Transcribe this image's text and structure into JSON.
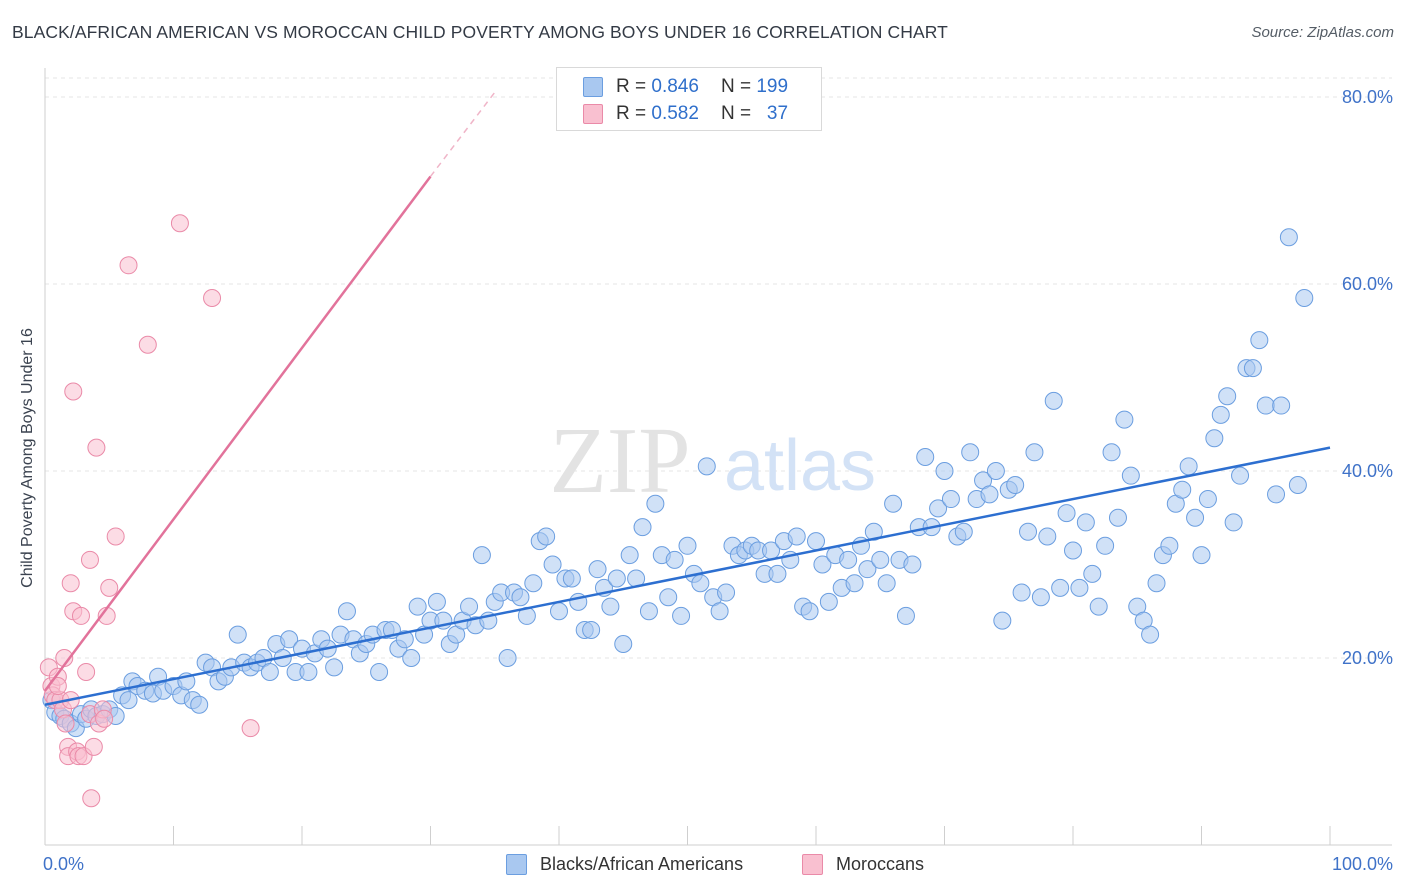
{
  "title": "BLACK/AFRICAN AMERICAN VS MOROCCAN CHILD POVERTY AMONG BOYS UNDER 16 CORRELATION CHART",
  "source": "Source: ZipAtlas.com",
  "watermark": {
    "zip": "ZIP",
    "atlas": "atlas"
  },
  "legend": {
    "r_label": "R =",
    "n_label": "N =",
    "series": [
      {
        "r": "0.846",
        "n": "199",
        "color": "#a9c8f0",
        "border": "#6b9ee0"
      },
      {
        "r": "0.582",
        "n": "37",
        "color": "#f9c0d0",
        "border": "#ea8aa8"
      }
    ]
  },
  "bottom_legend": [
    "Blacks/African Americans",
    "Moroccans"
  ],
  "chart_data": {
    "type": "scatter",
    "title": "BLACK/AFRICAN AMERICAN VS MOROCCAN CHILD POVERTY AMONG BOYS UNDER 16 CORRELATION CHART",
    "xlabel": "",
    "ylabel": "Child Poverty Among Boys Under 16",
    "xlim": [
      0,
      100
    ],
    "ylim": [
      0,
      80
    ],
    "x_tick_labels": [
      "0.0%",
      "100.0%"
    ],
    "y_tick_labels": [
      "20.0%",
      "40.0%",
      "60.0%",
      "80.0%"
    ],
    "y_ticks": [
      20,
      40,
      60,
      80
    ],
    "grid": true,
    "legend_position": "top-center",
    "series": [
      {
        "name": "Blacks/African Americans",
        "color": "#a9c8f0",
        "stroke": "#6b9ee0",
        "trend": {
          "x": [
            0,
            100
          ],
          "y": [
            15.0,
            42.5
          ],
          "color": "#2d6fd0"
        },
        "points": [
          [
            0.5,
            15.5
          ],
          [
            0.8,
            14.2
          ],
          [
            1.2,
            13.8
          ],
          [
            1.5,
            13.5
          ],
          [
            2.0,
            13.0
          ],
          [
            2.4,
            12.5
          ],
          [
            2.8,
            14.0
          ],
          [
            3.2,
            13.5
          ],
          [
            3.6,
            14.5
          ],
          [
            4.0,
            13.8
          ],
          [
            4.5,
            14.0
          ],
          [
            5.0,
            14.5
          ],
          [
            5.5,
            13.8
          ],
          [
            6.0,
            16.0
          ],
          [
            6.5,
            15.5
          ],
          [
            6.8,
            17.5
          ],
          [
            7.2,
            17.0
          ],
          [
            7.8,
            16.5
          ],
          [
            8.4,
            16.2
          ],
          [
            8.8,
            18.0
          ],
          [
            9.2,
            16.5
          ],
          [
            10.0,
            17.0
          ],
          [
            10.6,
            16.0
          ],
          [
            11.0,
            17.5
          ],
          [
            11.5,
            15.5
          ],
          [
            12.0,
            15.0
          ],
          [
            12.5,
            19.5
          ],
          [
            13.0,
            19.0
          ],
          [
            13.5,
            17.5
          ],
          [
            14.0,
            18.0
          ],
          [
            14.5,
            19.0
          ],
          [
            15.0,
            22.5
          ],
          [
            15.5,
            19.5
          ],
          [
            16.0,
            19.0
          ],
          [
            16.5,
            19.5
          ],
          [
            17.0,
            20.0
          ],
          [
            17.5,
            18.5
          ],
          [
            18.0,
            21.5
          ],
          [
            18.5,
            20.0
          ],
          [
            19.0,
            22.0
          ],
          [
            19.5,
            18.5
          ],
          [
            20.0,
            21.0
          ],
          [
            20.5,
            18.5
          ],
          [
            21.0,
            20.5
          ],
          [
            21.5,
            22.0
          ],
          [
            22.0,
            21.0
          ],
          [
            22.5,
            19.0
          ],
          [
            23.0,
            22.5
          ],
          [
            23.5,
            25.0
          ],
          [
            24.0,
            22.0
          ],
          [
            24.5,
            20.5
          ],
          [
            25.0,
            21.5
          ],
          [
            25.5,
            22.5
          ],
          [
            26.0,
            18.5
          ],
          [
            26.5,
            23.0
          ],
          [
            27.0,
            23.0
          ],
          [
            27.5,
            21.0
          ],
          [
            28.0,
            22.0
          ],
          [
            28.5,
            20.0
          ],
          [
            29.0,
            25.5
          ],
          [
            29.5,
            22.5
          ],
          [
            30.0,
            24.0
          ],
          [
            30.5,
            26.0
          ],
          [
            31.0,
            24.0
          ],
          [
            31.5,
            21.5
          ],
          [
            32.0,
            22.5
          ],
          [
            32.5,
            24.0
          ],
          [
            33.0,
            25.5
          ],
          [
            33.5,
            23.5
          ],
          [
            34.0,
            31.0
          ],
          [
            34.5,
            24.0
          ],
          [
            35.0,
            26.0
          ],
          [
            35.5,
            27.0
          ],
          [
            36.0,
            20.0
          ],
          [
            36.5,
            27.0
          ],
          [
            37.0,
            26.5
          ],
          [
            37.5,
            24.5
          ],
          [
            38.0,
            28.0
          ],
          [
            38.5,
            32.5
          ],
          [
            39.0,
            33.0
          ],
          [
            39.5,
            30.0
          ],
          [
            40.0,
            25.0
          ],
          [
            40.5,
            28.5
          ],
          [
            41.0,
            28.5
          ],
          [
            41.5,
            26.0
          ],
          [
            42.0,
            23.0
          ],
          [
            42.5,
            23.0
          ],
          [
            43.0,
            29.5
          ],
          [
            43.5,
            27.5
          ],
          [
            44.0,
            25.5
          ],
          [
            44.5,
            28.5
          ],
          [
            45.0,
            21.5
          ],
          [
            45.5,
            31.0
          ],
          [
            46.0,
            28.5
          ],
          [
            46.5,
            34.0
          ],
          [
            47.0,
            25.0
          ],
          [
            47.5,
            36.5
          ],
          [
            48.0,
            31.0
          ],
          [
            48.5,
            26.5
          ],
          [
            49.0,
            30.5
          ],
          [
            49.5,
            24.5
          ],
          [
            50.0,
            32.0
          ],
          [
            50.5,
            29.0
          ],
          [
            51.0,
            28.0
          ],
          [
            51.5,
            40.5
          ],
          [
            52.0,
            26.5
          ],
          [
            52.5,
            25.0
          ],
          [
            53.0,
            27.0
          ],
          [
            53.5,
            32.0
          ],
          [
            54.0,
            31.0
          ],
          [
            54.5,
            31.5
          ],
          [
            55.0,
            32.0
          ],
          [
            55.5,
            31.5
          ],
          [
            56.0,
            29.0
          ],
          [
            56.5,
            31.5
          ],
          [
            57.0,
            29.0
          ],
          [
            57.5,
            32.5
          ],
          [
            58.0,
            30.5
          ],
          [
            58.5,
            33.0
          ],
          [
            59.0,
            25.5
          ],
          [
            59.5,
            25.0
          ],
          [
            60.0,
            32.5
          ],
          [
            60.5,
            30.0
          ],
          [
            61.0,
            26.0
          ],
          [
            61.5,
            31.0
          ],
          [
            62.0,
            27.5
          ],
          [
            62.5,
            30.5
          ],
          [
            63.0,
            28.0
          ],
          [
            63.5,
            32.0
          ],
          [
            64.0,
            29.5
          ],
          [
            64.5,
            33.5
          ],
          [
            65.0,
            30.5
          ],
          [
            65.5,
            28.0
          ],
          [
            66.0,
            36.5
          ],
          [
            66.5,
            30.5
          ],
          [
            67.0,
            24.5
          ],
          [
            67.5,
            30.0
          ],
          [
            68.0,
            34.0
          ],
          [
            68.5,
            41.5
          ],
          [
            69.0,
            34.0
          ],
          [
            69.5,
            36.0
          ],
          [
            70.0,
            40.0
          ],
          [
            70.5,
            37.0
          ],
          [
            71.0,
            33.0
          ],
          [
            71.5,
            33.5
          ],
          [
            72.0,
            42.0
          ],
          [
            72.5,
            37.0
          ],
          [
            73.0,
            39.0
          ],
          [
            73.5,
            37.5
          ],
          [
            74.0,
            40.0
          ],
          [
            74.5,
            24.0
          ],
          [
            75.0,
            38.0
          ],
          [
            75.5,
            38.5
          ],
          [
            76.0,
            27.0
          ],
          [
            76.5,
            33.5
          ],
          [
            77.0,
            42.0
          ],
          [
            77.5,
            26.5
          ],
          [
            78.0,
            33.0
          ],
          [
            78.5,
            47.5
          ],
          [
            79.0,
            27.5
          ],
          [
            79.5,
            35.5
          ],
          [
            80.0,
            31.5
          ],
          [
            80.5,
            27.5
          ],
          [
            81.0,
            34.5
          ],
          [
            81.5,
            29.0
          ],
          [
            82.0,
            25.5
          ],
          [
            82.5,
            32.0
          ],
          [
            83.0,
            42.0
          ],
          [
            83.5,
            35.0
          ],
          [
            84.0,
            45.5
          ],
          [
            84.5,
            39.5
          ],
          [
            85.0,
            25.5
          ],
          [
            85.5,
            24.0
          ],
          [
            86.0,
            22.5
          ],
          [
            86.5,
            28.0
          ],
          [
            87.0,
            31.0
          ],
          [
            87.5,
            32.0
          ],
          [
            88.0,
            36.5
          ],
          [
            88.5,
            38.0
          ],
          [
            89.0,
            40.5
          ],
          [
            89.5,
            35.0
          ],
          [
            90.0,
            31.0
          ],
          [
            90.5,
            37.0
          ],
          [
            91.0,
            43.5
          ],
          [
            91.5,
            46.0
          ],
          [
            92.0,
            48.0
          ],
          [
            92.5,
            34.5
          ],
          [
            93.0,
            39.5
          ],
          [
            93.5,
            51.0
          ],
          [
            94.0,
            51.0
          ],
          [
            94.5,
            54.0
          ],
          [
            95.0,
            47.0
          ],
          [
            95.8,
            37.5
          ],
          [
            96.2,
            47.0
          ],
          [
            96.8,
            65.0
          ],
          [
            97.5,
            38.5
          ],
          [
            98.0,
            58.5
          ]
        ]
      },
      {
        "name": "Moroccans",
        "color": "#f9c0d0",
        "stroke": "#ea8aa8",
        "trend": {
          "x": [
            0,
            30
          ],
          "y": [
            16.5,
            71.5
          ],
          "x_dashed": [
            30,
            35
          ],
          "y_dashed": [
            71.5,
            80.5
          ],
          "color": "#e2739b"
        },
        "points": [
          [
            0.3,
            19.0
          ],
          [
            0.5,
            17.0
          ],
          [
            0.6,
            16.0
          ],
          [
            0.8,
            15.5
          ],
          [
            1.0,
            18.0
          ],
          [
            1.2,
            15.5
          ],
          [
            1.4,
            14.5
          ],
          [
            1.5,
            20.0
          ],
          [
            1.6,
            13.0
          ],
          [
            1.8,
            10.5
          ],
          [
            1.8,
            9.5
          ],
          [
            2.0,
            28.0
          ],
          [
            2.2,
            25.0
          ],
          [
            2.2,
            48.5
          ],
          [
            2.5,
            10.0
          ],
          [
            2.6,
            9.5
          ],
          [
            2.8,
            24.5
          ],
          [
            3.0,
            9.5
          ],
          [
            3.2,
            18.5
          ],
          [
            3.5,
            30.5
          ],
          [
            3.5,
            14.0
          ],
          [
            3.6,
            5.0
          ],
          [
            3.8,
            10.5
          ],
          [
            4.0,
            42.5
          ],
          [
            4.2,
            13.0
          ],
          [
            4.5,
            14.5
          ],
          [
            4.6,
            13.5
          ],
          [
            4.8,
            24.5
          ],
          [
            5.0,
            27.5
          ],
          [
            5.5,
            33.0
          ],
          [
            6.5,
            62.0
          ],
          [
            8.0,
            53.5
          ],
          [
            10.5,
            66.5
          ],
          [
            13.0,
            58.5
          ],
          [
            16.0,
            12.5
          ],
          [
            1.0,
            17.0
          ],
          [
            2.0,
            15.5
          ]
        ]
      }
    ]
  }
}
